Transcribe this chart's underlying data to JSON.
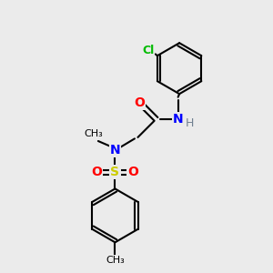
{
  "bg_color": "#ebebeb",
  "bond_color": "#000000",
  "atom_colors": {
    "O": "#ff0000",
    "N": "#0000ff",
    "S": "#cccc00",
    "Cl": "#00bb00",
    "H": "#708090",
    "C": "#000000"
  }
}
